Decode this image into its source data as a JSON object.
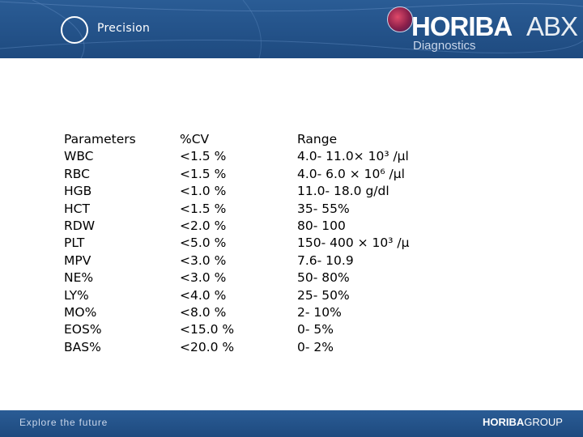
{
  "header": {
    "title": "Precision",
    "logo_word": "HORIBA",
    "logo_suffix": "ABX",
    "logo_sub": "Diagnostics"
  },
  "table": {
    "columns": [
      "Parameters",
      "%CV",
      "Range"
    ],
    "rows": [
      [
        "WBC",
        "<1.5 %",
        "4.0- 11.0× 10³ /µl"
      ],
      [
        "RBC",
        "<1.5 %",
        "4.0- 6.0 × 10⁶ /µl"
      ],
      [
        "HGB",
        "<1.0 %",
        "11.0- 18.0 g/dl"
      ],
      [
        "HCT",
        "<1.5 %",
        "35- 55%"
      ],
      [
        "RDW",
        "<2.0 %",
        "80- 100"
      ],
      [
        "PLT",
        "<5.0 %",
        "150- 400 × 10³ /µ"
      ],
      [
        "MPV",
        "<3.0 %",
        "7.6- 10.9"
      ],
      [
        "NE%",
        "<3.0 %",
        "50- 80%"
      ],
      [
        "LY%",
        "<4.0 %",
        "25- 50%"
      ],
      [
        "MO%",
        "<8.0 %",
        "2- 10%"
      ],
      [
        "EOS%",
        "<15.0 %",
        "0- 5%"
      ],
      [
        "BAS%",
        "<20.0 %",
        "0- 2%"
      ]
    ]
  },
  "footer": {
    "tagline": "Explore the future",
    "logo_bold": "HORIBA",
    "logo_rest": "GROUP"
  }
}
